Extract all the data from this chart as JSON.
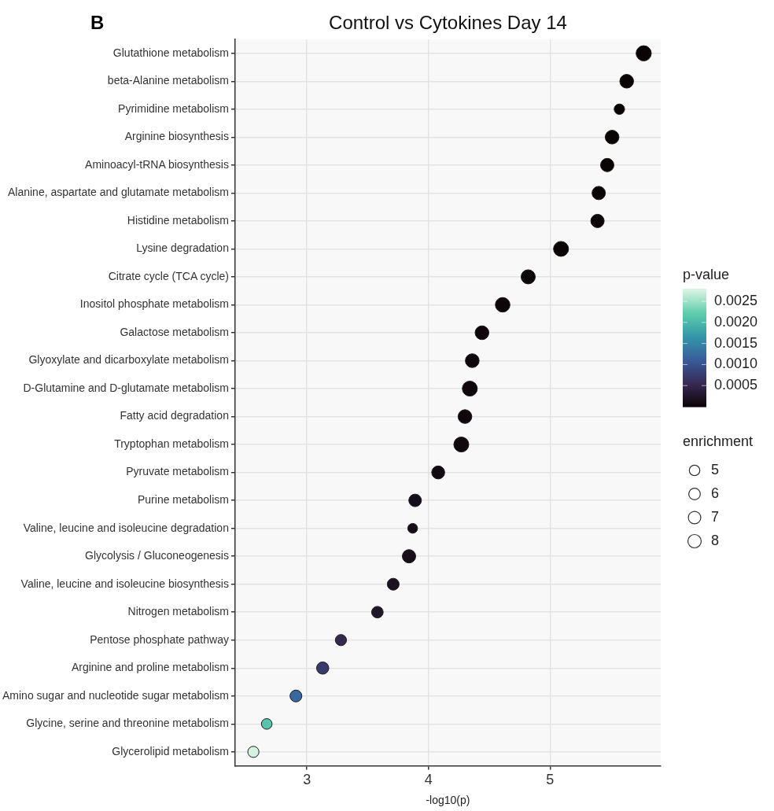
{
  "chart_data": {
    "type": "bubble",
    "orientation": "horizontal",
    "title": "Control vs Cytokines Day 14",
    "xlabel": "-log10(p)",
    "clabel": "p-value",
    "legend_title": "enrichment",
    "annotations": [
      "B"
    ],
    "categories": [
      "Glutathione metabolism",
      "beta-Alanine metabolism",
      "Pyrimidine metabolism",
      "Arginine biosynthesis",
      "Aminoacyl-tRNA biosynthesis",
      "Alanine, aspartate and glutamate metabolism",
      "Histidine metabolism",
      "Lysine degradation",
      "Citrate cycle (TCA cycle)",
      "Inositol phosphate metabolism",
      "Galactose metabolism",
      "Glyoxylate and dicarboxylate metabolism",
      "D-Glutamine and D-glutamate metabolism",
      "Fatty acid degradation",
      "Tryptophan metabolism",
      "Pyruvate metabolism",
      "Purine metabolism",
      "Valine, leucine and isoleucine degradation",
      "Glycolysis / Gluconeogenesis",
      "Valine, leucine and isoleucine biosynthesis",
      "Nitrogen metabolism",
      "Pentose phosphate pathway",
      "Arginine and proline metabolism",
      "Amino sugar and nucleotide sugar metabolism",
      "Glycine, serine and threonine metabolism",
      "Glycerolipid metabolism"
    ],
    "values": [
      5.77,
      5.63,
      5.57,
      5.51,
      5.47,
      5.4,
      5.39,
      5.09,
      4.82,
      4.61,
      4.44,
      4.36,
      4.34,
      4.3,
      4.27,
      4.08,
      3.89,
      3.87,
      3.84,
      3.71,
      3.58,
      3.28,
      3.13,
      2.91,
      2.67,
      2.56
    ],
    "sizes": [
      10.4,
      8.5,
      4.9,
      8.5,
      8.0,
      8.0,
      8.0,
      10.1,
      9.0,
      9.6,
      8.5,
      8.5,
      10.1,
      8.5,
      10.1,
      7.6,
      7.1,
      4.3,
      8.0,
      6.3,
      6.0,
      5.6,
      6.7,
      6.3,
      5.1,
      5.6
    ],
    "cvalues": [
      1.7e-06,
      2.3e-06,
      2.7e-06,
      3.1e-06,
      3.4e-06,
      4e-06,
      4.1e-06,
      8.1e-06,
      1.5e-05,
      2.5e-05,
      3.6e-05,
      4.4e-05,
      4.6e-05,
      5e-05,
      5.4e-05,
      8.3e-05,
      0.000129,
      0.000135,
      0.000145,
      0.000195,
      0.000263,
      0.000525,
      0.000741,
      0.00123,
      0.00214,
      0.00275
    ],
    "size_legend": [
      5,
      6,
      7,
      8
    ],
    "clim": [
      0,
      0.0028
    ],
    "cticks": [
      {
        "value": 0.0005,
        "label": "0.0005"
      },
      {
        "value": 0.001,
        "label": "0.0010"
      },
      {
        "value": 0.0015,
        "label": "0.0015"
      },
      {
        "value": 0.002,
        "label": "0.0020"
      },
      {
        "value": 0.0025,
        "label": "0.0025"
      }
    ],
    "xlim": [
      2.41,
      5.91
    ],
    "xticks": [
      3,
      4,
      5
    ],
    "grid": true,
    "marker": "circle"
  }
}
